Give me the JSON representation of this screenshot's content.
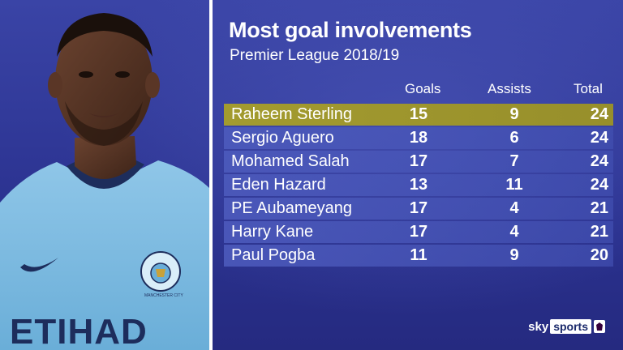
{
  "title": "Most goal involvements",
  "subtitle": "Premier League 2018/19",
  "columns": {
    "goals": "Goals",
    "assists": "Assists",
    "total": "Total"
  },
  "sponsor_text": "ETIHAD",
  "club_text": "MANCHESTER CITY",
  "brand": {
    "sky": "sky",
    "sports": "sports"
  },
  "highlight_color": "#a39b2f",
  "chart_data": {
    "type": "table",
    "title": "Most goal involvements",
    "subtitle": "Premier League 2018/19",
    "headers": [
      "",
      "Goals",
      "Assists",
      "Total"
    ],
    "rows": [
      {
        "name": "Raheem Sterling",
        "goals": 15,
        "assists": 9,
        "total": 24,
        "highlight": true
      },
      {
        "name": "Sergio Aguero",
        "goals": 18,
        "assists": 6,
        "total": 24
      },
      {
        "name": "Mohamed Salah",
        "goals": 17,
        "assists": 7,
        "total": 24
      },
      {
        "name": "Eden Hazard",
        "goals": 13,
        "assists": 11,
        "total": 24
      },
      {
        "name": "PE Aubameyang",
        "goals": 17,
        "assists": 4,
        "total": 21
      },
      {
        "name": "Harry Kane",
        "goals": 17,
        "assists": 4,
        "total": 21
      },
      {
        "name": "Paul Pogba",
        "goals": 11,
        "assists": 9,
        "total": 20
      }
    ]
  }
}
